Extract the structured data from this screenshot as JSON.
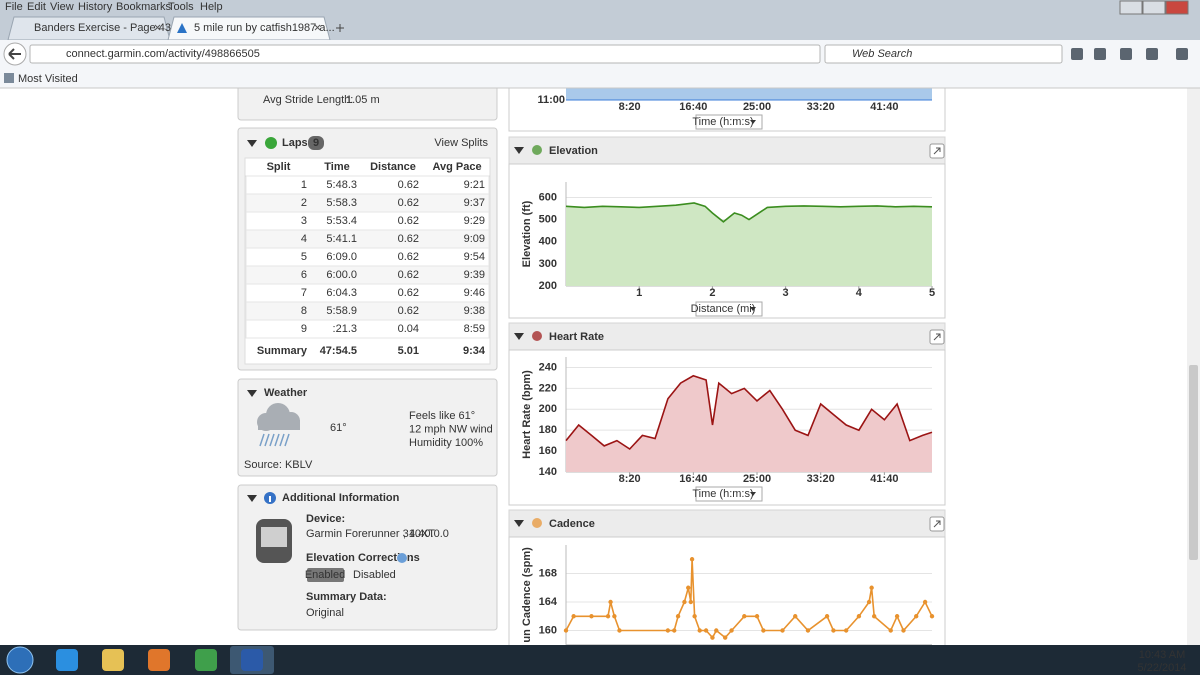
{
  "browser": {
    "menu": [
      "File",
      "Edit",
      "View",
      "History",
      "Bookmarks",
      "Tools",
      "Help"
    ],
    "tabs": [
      "Banders Exercise - Page 43 ...",
      "5 mile run by catfish1987 a..."
    ],
    "url": "connect.garmin.com/activity/498866505",
    "search": "Web Search",
    "bookmark": "Most Visited"
  },
  "stride": {
    "label": "Avg Stride Length:",
    "value": "1.05 m"
  },
  "laps": {
    "title": "Laps",
    "count": "9",
    "link": "View Splits",
    "columns": [
      "Split",
      "Time",
      "Distance",
      "Avg Pace"
    ],
    "rows": [
      [
        "1",
        "5:48.3",
        "0.62",
        "9:21"
      ],
      [
        "2",
        "5:58.3",
        "0.62",
        "9:37"
      ],
      [
        "3",
        "5:53.4",
        "0.62",
        "9:29"
      ],
      [
        "4",
        "5:41.1",
        "0.62",
        "9:09"
      ],
      [
        "5",
        "6:09.0",
        "0.62",
        "9:54"
      ],
      [
        "6",
        "6:00.0",
        "0.62",
        "9:39"
      ],
      [
        "7",
        "6:04.3",
        "0.62",
        "9:46"
      ],
      [
        "8",
        "5:58.9",
        "0.62",
        "9:38"
      ],
      [
        "9",
        ":21.3",
        "0.04",
        "8:59"
      ]
    ],
    "summary": [
      "Summary",
      "47:54.5",
      "5.01",
      "9:34"
    ]
  },
  "weather": {
    "title": "Weather",
    "temp": "61°",
    "details": [
      "Feels like 61°",
      "12 mph NW wind",
      "Humidity 100%"
    ],
    "source": "Source: KBLV"
  },
  "additional": {
    "title": "Additional Information",
    "device_label": "Device:",
    "device": "Garmin Forerunner 310XT",
    "version": ", 4.40.0.0",
    "corrections_label": "Elevation Corrections",
    "corrections_suffix": ":",
    "enabled": "Enabled",
    "disabled": "Disabled",
    "summary_label": "Summary Data:",
    "summary": "Original"
  },
  "pace_chart": {
    "xlim": [
      0,
      2874
    ],
    "yticks": [
      "11:00"
    ],
    "xticks": [
      {
        "value": 500,
        "label": "8:20"
      },
      {
        "value": 1000,
        "label": "16:40"
      },
      {
        "value": 1500,
        "label": "25:00"
      },
      {
        "value": 2000,
        "label": "33:20"
      },
      {
        "value": 2500,
        "label": "41:40"
      }
    ],
    "selector": "Time (h:m:s)"
  },
  "chart_data": [
    {
      "type": "area",
      "title": "Elevation",
      "y_label": "Elevation (ft)",
      "selector": "Distance (mi)",
      "color": "#3b8d1f",
      "fill": "#cfe7c3",
      "grid": true,
      "xlim": [
        0,
        5
      ],
      "ylim": [
        200,
        670
      ],
      "xticks": [
        1,
        2,
        3,
        4,
        5
      ],
      "yticks": [
        200,
        300,
        400,
        500,
        600
      ],
      "x": [
        0,
        0.25,
        0.5,
        0.75,
        1,
        1.25,
        1.5,
        1.75,
        1.9,
        2,
        2.15,
        2.3,
        2.4,
        2.5,
        2.75,
        3,
        3.25,
        3.5,
        3.75,
        4,
        4.25,
        4.5,
        4.75,
        5
      ],
      "values": [
        560,
        555,
        560,
        558,
        555,
        560,
        565,
        575,
        560,
        530,
        490,
        530,
        520,
        500,
        555,
        560,
        562,
        560,
        558,
        560,
        562,
        558,
        560,
        558
      ]
    },
    {
      "type": "area",
      "title": "Heart Rate",
      "y_label": "Heart Rate (bpm)",
      "selector": "Time (h:m:s)",
      "color": "#9b1414",
      "fill": "#efc9cb",
      "grid": true,
      "xlim": [
        0,
        2874
      ],
      "ylim": [
        140,
        250
      ],
      "xticks": [
        {
          "value": 500,
          "label": "8:20"
        },
        {
          "value": 1000,
          "label": "16:40"
        },
        {
          "value": 1500,
          "label": "25:00"
        },
        {
          "value": 2000,
          "label": "33:20"
        },
        {
          "value": 2500,
          "label": "41:40"
        }
      ],
      "yticks": [
        140,
        160,
        180,
        200,
        220,
        240
      ],
      "x": [
        0,
        100,
        200,
        300,
        400,
        500,
        600,
        700,
        800,
        900,
        1000,
        1100,
        1150,
        1200,
        1300,
        1400,
        1500,
        1600,
        1700,
        1800,
        1900,
        2000,
        2100,
        2200,
        2300,
        2400,
        2500,
        2600,
        2700,
        2800,
        2874
      ],
      "values": [
        170,
        185,
        175,
        165,
        170,
        162,
        175,
        172,
        210,
        225,
        232,
        228,
        185,
        225,
        215,
        220,
        208,
        218,
        200,
        180,
        175,
        205,
        195,
        185,
        180,
        200,
        190,
        205,
        170,
        175,
        178
      ]
    },
    {
      "type": "line",
      "title": "Cadence",
      "y_label": "un Cadence (spm)",
      "color": "#e8922e",
      "grid": true,
      "xlim": [
        0,
        2874
      ],
      "ylim": [
        158,
        172
      ],
      "yticks": [
        160,
        164,
        168
      ],
      "x": [
        0,
        60,
        200,
        330,
        350,
        380,
        420,
        800,
        850,
        880,
        930,
        960,
        980,
        990,
        1010,
        1050,
        1100,
        1150,
        1180,
        1250,
        1300,
        1400,
        1500,
        1550,
        1700,
        1800,
        1900,
        2050,
        2100,
        2200,
        2300,
        2380,
        2400,
        2420,
        2550,
        2600,
        2650,
        2750,
        2820,
        2874
      ],
      "values": [
        160,
        162,
        162,
        162,
        164,
        162,
        160,
        160,
        160,
        162,
        164,
        166,
        164,
        170,
        162,
        160,
        160,
        159,
        160,
        159,
        160,
        162,
        162,
        160,
        160,
        162,
        160,
        162,
        160,
        160,
        162,
        164,
        166,
        162,
        160,
        162,
        160,
        162,
        164,
        162
      ]
    }
  ],
  "taskbar": {
    "time": "10:43 AM",
    "date": "5/22/2014"
  }
}
